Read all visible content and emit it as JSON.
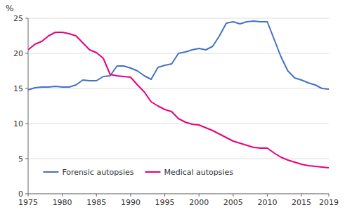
{
  "chart_data": {
    "type": "line",
    "y_label": "%",
    "x": [
      1975,
      1976,
      1977,
      1978,
      1979,
      1980,
      1981,
      1982,
      1983,
      1984,
      1985,
      1986,
      1987,
      1988,
      1989,
      1990,
      1991,
      1992,
      1993,
      1994,
      1995,
      1996,
      1997,
      1998,
      1999,
      2000,
      2001,
      2002,
      2003,
      2004,
      2005,
      2006,
      2007,
      2008,
      2009,
      2010,
      2011,
      2012,
      2013,
      2014,
      2015,
      2016,
      2017,
      2018,
      2019
    ],
    "series": [
      {
        "name": "Forensic autopsies",
        "color": "#4472C4",
        "values": [
          14.8,
          15.1,
          15.2,
          15.2,
          15.3,
          15.2,
          15.2,
          15.5,
          16.2,
          16.1,
          16.1,
          16.7,
          16.8,
          18.2,
          18.2,
          17.9,
          17.5,
          16.8,
          16.3,
          18.0,
          18.3,
          18.5,
          20.0,
          20.2,
          20.5,
          20.7,
          20.5,
          21.0,
          22.5,
          24.3,
          24.5,
          24.2,
          24.5,
          24.6,
          24.5,
          24.5,
          22.0,
          19.5,
          17.5,
          16.5,
          16.2,
          15.8,
          15.5,
          15.0,
          14.9
        ]
      },
      {
        "name": "Medical autopsies",
        "color": "#E6007E",
        "values": [
          20.5,
          21.3,
          21.7,
          22.5,
          23.0,
          23.0,
          22.8,
          22.5,
          21.5,
          20.5,
          20.1,
          19.3,
          17.0,
          16.8,
          16.7,
          16.6,
          15.5,
          14.5,
          13.1,
          12.5,
          12.0,
          11.7,
          10.7,
          10.2,
          9.9,
          9.8,
          9.4,
          9.0,
          8.5,
          8.0,
          7.5,
          7.2,
          6.9,
          6.6,
          6.5,
          6.5,
          5.8,
          5.2,
          4.8,
          4.5,
          4.2,
          4.0,
          3.9,
          3.8,
          3.7
        ]
      }
    ],
    "xlim": [
      1975,
      2019
    ],
    "ylim": [
      0,
      25
    ],
    "xticks": [
      1975,
      1980,
      1985,
      1990,
      1995,
      2000,
      2005,
      2010,
      2015,
      2019
    ],
    "yticks": [
      0,
      5,
      10,
      15,
      20,
      25
    ],
    "grid": true,
    "legend": "lower left"
  }
}
